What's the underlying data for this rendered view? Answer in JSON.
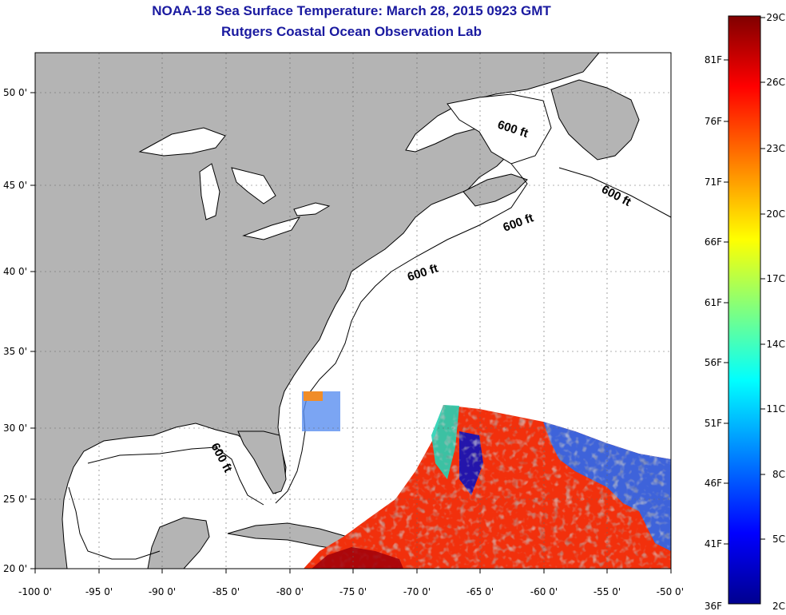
{
  "title": {
    "line1": "NOAA-18 Sea Surface Temperature:  March 28, 2015 0923 GMT",
    "line2": "Rutgers Coastal Ocean Observation Lab"
  },
  "map": {
    "lon_ticks": [
      "-100 0'",
      "-95 0'",
      "-90 0'",
      "-85 0'",
      "-80 0'",
      "-75 0'",
      "-70 0'",
      "-65 0'",
      "-60 0'",
      "-55 0'",
      "-50 0'"
    ],
    "lat_ticks": [
      "20 0'",
      "25 0'",
      "30 0'",
      "35 0'",
      "40 0'",
      "45 0'",
      "50 0'"
    ],
    "contour_labels": [
      "600 ft",
      "600 ft",
      "600 ft",
      "600 ft",
      "600 ft"
    ],
    "land_color": "#b4b4b4",
    "ocean_color": "#ffffff"
  },
  "colorbar": {
    "fahrenheit": [
      "81F",
      "76F",
      "71F",
      "66F",
      "61F",
      "56F",
      "51F",
      "46F",
      "41F",
      "36F"
    ],
    "celsius": [
      "29C",
      "26C",
      "23C",
      "20C",
      "17C",
      "14C",
      "11C",
      "8C",
      "5C",
      "2C"
    ],
    "colormap": [
      "#00008f",
      "#0000ff",
      "#00ffff",
      "#ffff00",
      "#ff0000",
      "#800000"
    ]
  }
}
